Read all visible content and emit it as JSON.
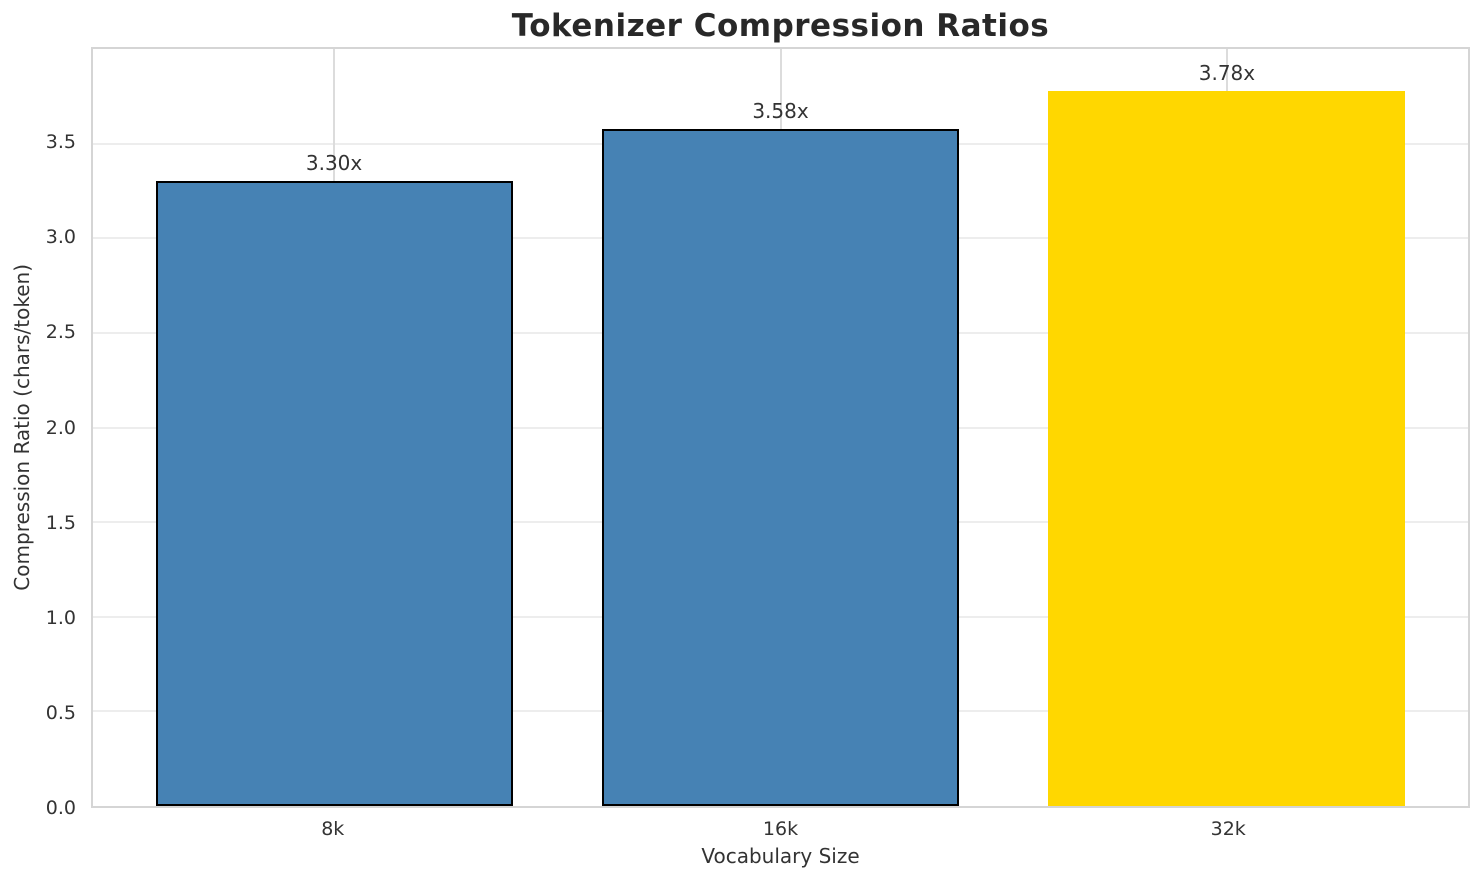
{
  "chart_data": {
    "type": "bar",
    "title": "Tokenizer Compression Ratios",
    "xlabel": "Vocabulary Size",
    "ylabel": "Compression Ratio (chars/token)",
    "categories": [
      "8k",
      "16k",
      "32k"
    ],
    "values": [
      3.3,
      3.58,
      3.78
    ],
    "bar_labels": [
      "3.30x",
      "3.58x",
      "3.78x"
    ],
    "bar_colors": [
      "#4682B4",
      "#4682B4",
      "#FFD700"
    ],
    "bar_edge_colors": [
      "#000000",
      "#000000",
      "none"
    ],
    "ylim": [
      0,
      4.0
    ],
    "yticks": [
      0.0,
      0.5,
      1.0,
      1.5,
      2.0,
      2.5,
      3.0,
      3.5
    ],
    "ytick_labels": [
      "0.0",
      "0.5",
      "1.0",
      "1.5",
      "2.0",
      "2.5",
      "3.0",
      "3.5"
    ],
    "grid": "both",
    "legend": "none",
    "bar_width_frac": 0.8,
    "colors": {
      "grid_h": "#ededed",
      "grid_v": "#dcdcdc",
      "spine": "#d5d5d5",
      "text": "#333333",
      "title_text": "#282828"
    }
  }
}
